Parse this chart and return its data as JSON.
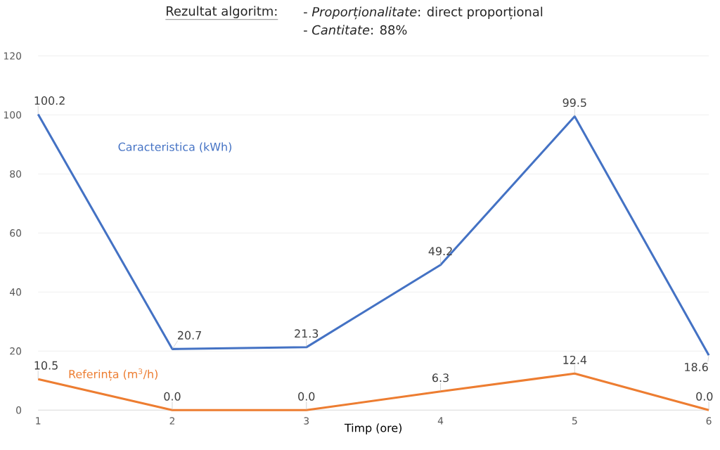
{
  "chart_data": {
    "type": "line",
    "title": "Rezultat algoritm:",
    "subtitle": "- *Proporționalitate*: direct proporțional",
    "annotations": [
      "- *Cantitate*: 88%"
    ],
    "xlabel": "Timp (ore)",
    "x": [
      1,
      2,
      3,
      4,
      5,
      6
    ],
    "series": [
      {
        "name": "Caracteristica (kWh)",
        "color": "#4472c4",
        "values": [
          100.2,
          20.7,
          21.3,
          49.2,
          99.5,
          18.6
        ],
        "value_labels": [
          "100.2",
          "20.7",
          "21.3",
          "49.2",
          "99.5",
          "18.6"
        ]
      },
      {
        "name": "Referința (m$^{3}$/h)",
        "color": "#ed7d31",
        "values": [
          10.5,
          0,
          0,
          6.3,
          12.4,
          0
        ],
        "value_labels": [
          "10.5",
          "0.0",
          "0.0",
          "6.3",
          "12.4",
          "0.0"
        ]
      }
    ],
    "xlim": [
      1,
      6
    ],
    "xticks": [
      1,
      2,
      3,
      4,
      5,
      6
    ],
    "ylim": [
      0,
      120
    ],
    "yticks": [
      0,
      20,
      40,
      60,
      80,
      100,
      120
    ],
    "grid": "y",
    "marker": "none",
    "line_style": "solid"
  }
}
